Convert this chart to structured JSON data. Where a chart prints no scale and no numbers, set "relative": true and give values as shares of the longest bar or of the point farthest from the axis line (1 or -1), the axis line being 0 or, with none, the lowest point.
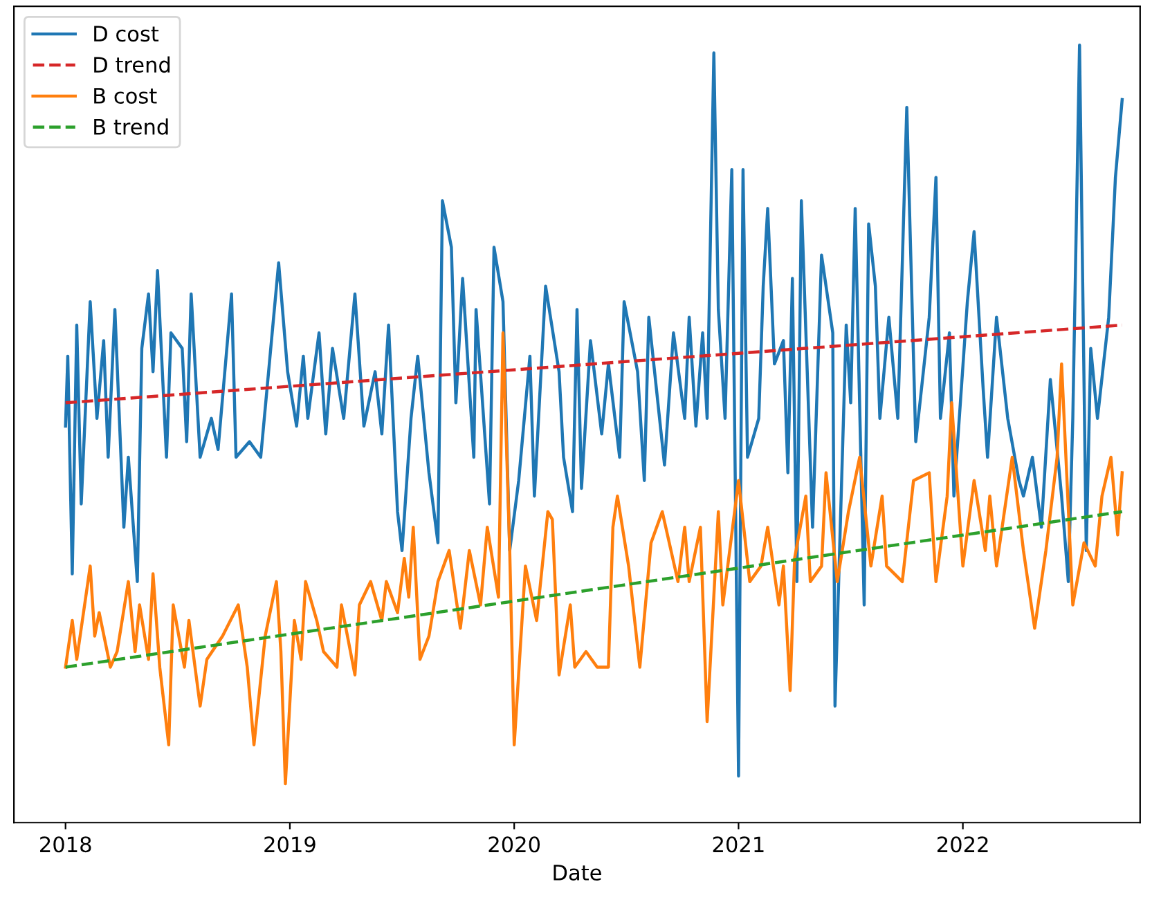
{
  "chart_data": {
    "type": "line",
    "relative": true,
    "xlabel": "Date",
    "xlim": [
      2017.77,
      2022.79
    ],
    "xticks": [
      2018,
      2019,
      2020,
      2021,
      2022
    ],
    "legend": "top left",
    "grid": false,
    "series": [
      {
        "name": "D cost",
        "color": "#1f77b4",
        "line_style": "solid",
        "x": [
          2018.0,
          2018.01,
          2018.03,
          2018.05,
          2018.07,
          2018.11,
          2018.14,
          2018.17,
          2018.19,
          2018.22,
          2018.26,
          2018.28,
          2018.32,
          2018.34,
          2018.37,
          2018.39,
          2018.41,
          2018.45,
          2018.47,
          2018.52,
          2018.54,
          2018.56,
          2018.6,
          2018.65,
          2018.68,
          2018.74,
          2018.76,
          2018.82,
          2018.87,
          2018.95,
          2018.99,
          2019.03,
          2019.06,
          2019.08,
          2019.13,
          2019.16,
          2019.19,
          2019.24,
          2019.29,
          2019.33,
          2019.38,
          2019.41,
          2019.44,
          2019.48,
          2019.5,
          2019.54,
          2019.57,
          2019.62,
          2019.66,
          2019.68,
          2019.72,
          2019.74,
          2019.77,
          2019.82,
          2019.83,
          2019.89,
          2019.91,
          2019.95,
          2019.98,
          2020.02,
          2020.07,
          2020.09,
          2020.14,
          2020.2,
          2020.22,
          2020.26,
          2020.28,
          2020.3,
          2020.34,
          2020.39,
          2020.42,
          2020.47,
          2020.49,
          2020.55,
          2020.58,
          2020.6,
          2020.67,
          2020.71,
          2020.76,
          2020.78,
          2020.81,
          2020.84,
          2020.86,
          2020.89,
          2020.91,
          2020.94,
          2020.97,
          2021.0,
          2021.02,
          2021.04,
          2021.09,
          2021.11,
          2021.13,
          2021.16,
          2021.2,
          2021.22,
          2021.24,
          2021.26,
          2021.28,
          2021.33,
          2021.37,
          2021.42,
          2021.43,
          2021.48,
          2021.5,
          2021.52,
          2021.56,
          2021.58,
          2021.61,
          2021.63,
          2021.67,
          2021.71,
          2021.75,
          2021.79,
          2021.85,
          2021.88,
          2021.9,
          2021.94,
          2021.96,
          2022.02,
          2022.05,
          2022.09,
          2022.11,
          2022.15,
          2022.2,
          2022.25,
          2022.27,
          2022.31,
          2022.35,
          2022.39,
          2022.44,
          2022.47,
          2022.49,
          2022.52,
          2022.55,
          2022.57,
          2022.6,
          2022.65,
          2022.68,
          2022.71
        ],
        "values": [
          0.51,
          0.6,
          0.32,
          0.64,
          0.41,
          0.67,
          0.52,
          0.62,
          0.47,
          0.66,
          0.38,
          0.47,
          0.31,
          0.61,
          0.68,
          0.58,
          0.71,
          0.47,
          0.63,
          0.61,
          0.49,
          0.68,
          0.47,
          0.52,
          0.48,
          0.68,
          0.47,
          0.49,
          0.47,
          0.72,
          0.58,
          0.51,
          0.6,
          0.52,
          0.63,
          0.5,
          0.61,
          0.52,
          0.68,
          0.51,
          0.58,
          0.5,
          0.64,
          0.4,
          0.35,
          0.52,
          0.6,
          0.45,
          0.36,
          0.8,
          0.74,
          0.54,
          0.7,
          0.47,
          0.66,
          0.41,
          0.74,
          0.67,
          0.35,
          0.44,
          0.6,
          0.42,
          0.69,
          0.58,
          0.47,
          0.4,
          0.66,
          0.43,
          0.62,
          0.5,
          0.59,
          0.47,
          0.67,
          0.58,
          0.44,
          0.65,
          0.46,
          0.63,
          0.52,
          0.65,
          0.51,
          0.63,
          0.52,
          0.99,
          0.66,
          0.52,
          0.84,
          0.06,
          0.84,
          0.47,
          0.52,
          0.69,
          0.79,
          0.59,
          0.62,
          0.45,
          0.7,
          0.31,
          0.8,
          0.38,
          0.73,
          0.63,
          0.15,
          0.64,
          0.54,
          0.79,
          0.28,
          0.77,
          0.69,
          0.52,
          0.65,
          0.52,
          0.92,
          0.49,
          0.65,
          0.83,
          0.52,
          0.63,
          0.42,
          0.67,
          0.76,
          0.56,
          0.47,
          0.65,
          0.52,
          0.44,
          0.42,
          0.47,
          0.38,
          0.57,
          0.42,
          0.31,
          0.52,
          1.0,
          0.35,
          0.61,
          0.52,
          0.65,
          0.83,
          0.93
        ]
      },
      {
        "name": "D trend",
        "color": "#d62728",
        "line_style": "dashed",
        "x": [
          2018.0,
          2022.71
        ],
        "values": [
          0.54,
          0.64
        ]
      },
      {
        "name": "B cost",
        "color": "#ff7f0e",
        "line_style": "solid",
        "x": [
          2018.0,
          2018.03,
          2018.05,
          2018.07,
          2018.11,
          2018.13,
          2018.15,
          2018.2,
          2018.23,
          2018.28,
          2018.31,
          2018.33,
          2018.37,
          2018.39,
          2018.42,
          2018.46,
          2018.48,
          2018.53,
          2018.55,
          2018.6,
          2018.63,
          2018.7,
          2018.77,
          2018.81,
          2018.84,
          2018.89,
          2018.94,
          2018.96,
          2018.98,
          2019.02,
          2019.05,
          2019.07,
          2019.12,
          2019.15,
          2019.21,
          2019.23,
          2019.29,
          2019.31,
          2019.36,
          2019.41,
          2019.43,
          2019.48,
          2019.51,
          2019.53,
          2019.55,
          2019.58,
          2019.62,
          2019.66,
          2019.71,
          2019.76,
          2019.8,
          2019.85,
          2019.88,
          2019.93,
          2019.95,
          2019.98,
          2020.0,
          2020.05,
          2020.1,
          2020.15,
          2020.17,
          2020.2,
          2020.25,
          2020.27,
          2020.32,
          2020.37,
          2020.42,
          2020.44,
          2020.46,
          2020.51,
          2020.56,
          2020.61,
          2020.66,
          2020.73,
          2020.76,
          2020.78,
          2020.83,
          2020.86,
          2020.91,
          2020.93,
          2021.0,
          2021.05,
          2021.1,
          2021.13,
          2021.18,
          2021.2,
          2021.23,
          2021.25,
          2021.3,
          2021.32,
          2021.37,
          2021.39,
          2021.44,
          2021.49,
          2021.54,
          2021.59,
          2021.64,
          2021.66,
          2021.73,
          2021.78,
          2021.85,
          2021.88,
          2021.93,
          2021.95,
          2022.0,
          2022.05,
          2022.1,
          2022.12,
          2022.15,
          2022.22,
          2022.27,
          2022.32,
          2022.37,
          2022.42,
          2022.44,
          2022.49,
          2022.54,
          2022.59,
          2022.62,
          2022.66,
          2022.69,
          2022.71
        ],
        "values": [
          0.2,
          0.26,
          0.21,
          0.25,
          0.33,
          0.24,
          0.27,
          0.2,
          0.22,
          0.31,
          0.22,
          0.28,
          0.21,
          0.32,
          0.2,
          0.1,
          0.28,
          0.2,
          0.26,
          0.15,
          0.21,
          0.24,
          0.28,
          0.2,
          0.1,
          0.24,
          0.31,
          0.22,
          0.05,
          0.26,
          0.21,
          0.31,
          0.26,
          0.22,
          0.2,
          0.28,
          0.19,
          0.28,
          0.31,
          0.26,
          0.31,
          0.27,
          0.34,
          0.29,
          0.38,
          0.21,
          0.24,
          0.31,
          0.35,
          0.25,
          0.35,
          0.28,
          0.38,
          0.29,
          0.63,
          0.35,
          0.1,
          0.33,
          0.26,
          0.4,
          0.39,
          0.19,
          0.28,
          0.2,
          0.22,
          0.2,
          0.2,
          0.38,
          0.42,
          0.33,
          0.2,
          0.36,
          0.4,
          0.31,
          0.38,
          0.31,
          0.38,
          0.13,
          0.4,
          0.28,
          0.44,
          0.31,
          0.33,
          0.38,
          0.28,
          0.33,
          0.17,
          0.34,
          0.42,
          0.31,
          0.33,
          0.45,
          0.31,
          0.4,
          0.47,
          0.33,
          0.42,
          0.33,
          0.31,
          0.44,
          0.45,
          0.31,
          0.42,
          0.54,
          0.33,
          0.44,
          0.35,
          0.42,
          0.33,
          0.47,
          0.35,
          0.25,
          0.35,
          0.47,
          0.59,
          0.28,
          0.36,
          0.33,
          0.42,
          0.47,
          0.37,
          0.45
        ]
      },
      {
        "name": "B trend",
        "color": "#2ca02c",
        "line_style": "dashed",
        "x": [
          2018.0,
          2022.71
        ],
        "values": [
          0.2,
          0.4
        ]
      }
    ]
  }
}
